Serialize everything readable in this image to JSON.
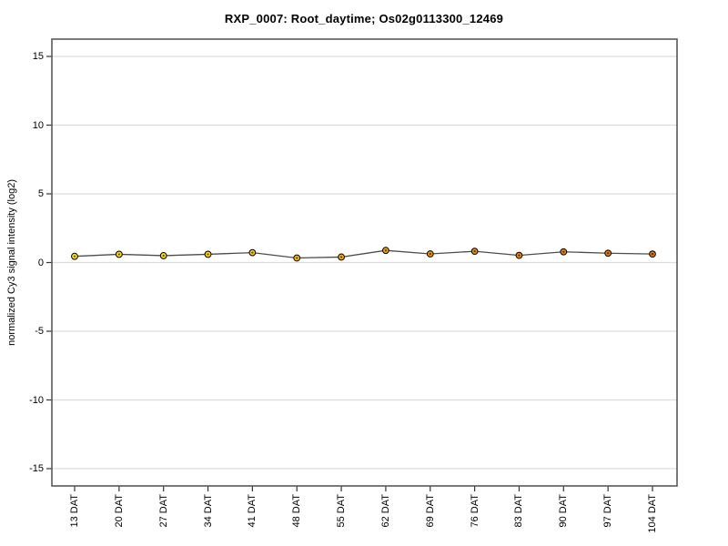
{
  "title": "RXP_0007: Root_daytime; Os02g0113300_12469",
  "chart_data": {
    "type": "line",
    "title": "RXP_0007: Root_daytime; Os02g0113300_12469",
    "xlabel": "",
    "ylabel": "normalized Cy3 signal intensity (log2)",
    "categories": [
      "13 DAT",
      "20 DAT",
      "27 DAT",
      "34 DAT",
      "41 DAT",
      "48 DAT",
      "55 DAT",
      "62 DAT",
      "69 DAT",
      "76 DAT",
      "83 DAT",
      "90 DAT",
      "97 DAT",
      "104 DAT"
    ],
    "values": [
      0.45,
      0.6,
      0.5,
      0.6,
      0.72,
      0.33,
      0.4,
      0.88,
      0.63,
      0.82,
      0.52,
      0.78,
      0.68,
      0.62
    ],
    "point_colors": [
      "#ffe400",
      "#ffe000",
      "#ffdb00",
      "#ffd600",
      "#fccc00",
      "#f7bd02",
      "#f3af05",
      "#efa107",
      "#ec9a09",
      "#ea930a",
      "#e88b0c",
      "#e6830d",
      "#e47c0e",
      "#e2750f"
    ],
    "yticks": [
      15,
      10,
      5,
      0,
      -5,
      -10,
      -15
    ],
    "ytick_labels": [
      "15",
      "10",
      "5",
      "0",
      "-5",
      "-10",
      "-15"
    ],
    "ylim": [
      -16.3,
      16.3
    ],
    "grid": "horizontal",
    "legend": "none",
    "line_color": "#4d4d4d",
    "grid_color": "#dcdcdc",
    "box_color": "#595959",
    "tick_color": "#333333",
    "marker": "circle-dot",
    "marker_border_color": "#000000",
    "marker_center_dot_color": "rgba(40,20,0,0.75)"
  }
}
